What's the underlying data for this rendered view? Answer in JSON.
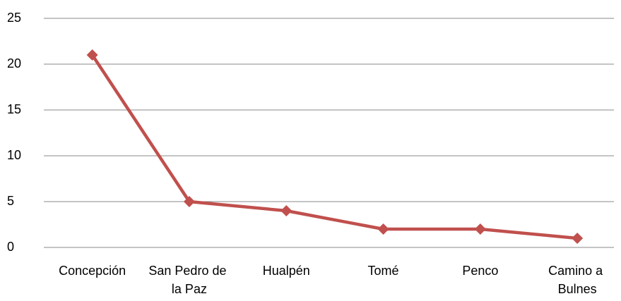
{
  "chart_data": {
    "type": "line",
    "categories": [
      "Concepción",
      "San Pedro de la Paz",
      "Hualpén",
      "Tomé",
      "Penco",
      "Camino a Bulnes"
    ],
    "series": [
      {
        "name": null,
        "color": "#c0504d",
        "values": [
          21,
          5,
          4,
          2,
          2,
          1
        ]
      }
    ],
    "ylim": [
      0,
      25
    ],
    "yticks": [
      0,
      5,
      10,
      15,
      20,
      25
    ],
    "grid": true
  }
}
